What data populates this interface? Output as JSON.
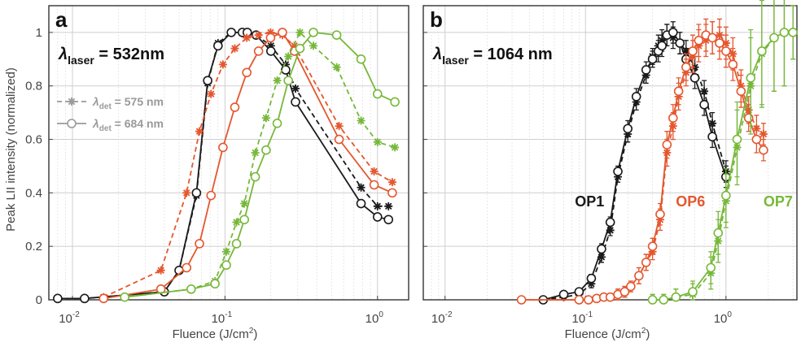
{
  "figure": {
    "ylabel": "Peak LII intensity (normalized)",
    "xlabel_prefix": "Fluence (J/cm",
    "xlabel_sup": "2",
    "xlabel_suffix": ")"
  },
  "colors": {
    "OP1": "#1a1a1a",
    "OP6": "#e4572e",
    "OP7": "#77b83a",
    "legend_gray": "#9a9a9a"
  },
  "chart_data": [
    {
      "type": "line",
      "panel_letter": "a",
      "lambda_symbol": "λ",
      "lambda_sub": "laser",
      "lambda_value": "= 532nm",
      "x_scale": "log",
      "xlim": [
        0.007,
        1.6
      ],
      "ylim": [
        0,
        1.1
      ],
      "yticks": [
        "0",
        "0.2",
        "0.4",
        "0.6",
        "0.8",
        "1"
      ],
      "xticks": [
        {
          "base": "10",
          "exp": "-2",
          "value": 0.01
        },
        {
          "base": "10",
          "exp": "-1",
          "value": 0.1
        },
        {
          "base": "10",
          "exp": "0",
          "value": 1
        }
      ],
      "grid": true,
      "legend_position": "middle-left",
      "legend": [
        {
          "symbol": "λ",
          "sub": "det",
          "value": "= 575 nm",
          "line": "dashed",
          "marker": "asterisk"
        },
        {
          "symbol": "λ",
          "sub": "det",
          "value": "= 684 nm",
          "line": "solid",
          "marker": "circle"
        }
      ],
      "series": [
        {
          "sample": "OP1",
          "detection": "575 nm",
          "line": "dashed",
          "marker": "asterisk",
          "x": [
            0.008,
            0.012,
            0.04,
            0.05,
            0.065,
            0.077,
            0.09,
            0.11,
            0.13,
            0.14,
            0.16,
            0.2,
            0.25,
            0.29,
            0.78,
            1.0,
            1.18
          ],
          "y": [
            0.005,
            0.005,
            0.03,
            0.11,
            0.39,
            0.81,
            0.96,
            1.0,
            1.0,
            1.0,
            0.99,
            0.95,
            0.88,
            0.79,
            0.42,
            0.35,
            0.35
          ]
        },
        {
          "sample": "OP1",
          "detection": "684 nm",
          "line": "solid",
          "marker": "circle",
          "x": [
            0.008,
            0.012,
            0.04,
            0.05,
            0.065,
            0.077,
            0.09,
            0.11,
            0.13,
            0.14,
            0.16,
            0.2,
            0.25,
            0.29,
            0.78,
            1.0,
            1.18
          ],
          "y": [
            0.005,
            0.005,
            0.03,
            0.11,
            0.4,
            0.82,
            0.95,
            1.0,
            1.0,
            1.0,
            0.99,
            0.93,
            0.86,
            0.74,
            0.36,
            0.31,
            0.3
          ]
        },
        {
          "sample": "OP6",
          "detection": "575 nm",
          "line": "dashed",
          "marker": "asterisk",
          "x": [
            0.016,
            0.038,
            0.056,
            0.068,
            0.081,
            0.097,
            0.116,
            0.139,
            0.166,
            0.199,
            0.238,
            0.285,
            0.56,
            0.95,
            1.25
          ],
          "y": [
            0.01,
            0.11,
            0.4,
            0.63,
            0.77,
            0.88,
            0.94,
            0.98,
            0.99,
            1.0,
            0.99,
            0.95,
            0.65,
            0.48,
            0.44
          ]
        },
        {
          "sample": "OP6",
          "detection": "684 nm",
          "line": "solid",
          "marker": "circle",
          "x": [
            0.016,
            0.038,
            0.056,
            0.068,
            0.081,
            0.097,
            0.116,
            0.139,
            0.166,
            0.199,
            0.238,
            0.285,
            0.56,
            0.95,
            1.25
          ],
          "y": [
            0.005,
            0.04,
            0.12,
            0.21,
            0.39,
            0.57,
            0.72,
            0.85,
            0.93,
            0.98,
            1.0,
            0.93,
            0.6,
            0.43,
            0.4
          ]
        },
        {
          "sample": "OP7",
          "detection": "575 nm",
          "line": "dashed",
          "marker": "asterisk",
          "x": [
            0.022,
            0.06,
            0.086,
            0.102,
            0.119,
            0.134,
            0.158,
            0.186,
            0.22,
            0.26,
            0.31,
            0.38,
            0.54,
            0.78,
            1.0,
            1.3
          ],
          "y": [
            0.01,
            0.04,
            0.07,
            0.18,
            0.29,
            0.36,
            0.55,
            0.68,
            0.82,
            0.91,
            1.0,
            0.95,
            0.87,
            0.67,
            0.59,
            0.57
          ]
        },
        {
          "sample": "OP7",
          "detection": "684 nm",
          "line": "solid",
          "marker": "circle",
          "x": [
            0.022,
            0.06,
            0.086,
            0.102,
            0.119,
            0.134,
            0.158,
            0.186,
            0.22,
            0.26,
            0.31,
            0.38,
            0.54,
            0.78,
            1.0,
            1.3
          ],
          "y": [
            0.01,
            0.04,
            0.06,
            0.13,
            0.21,
            0.3,
            0.46,
            0.56,
            0.66,
            0.82,
            0.94,
            1.0,
            0.99,
            0.9,
            0.77,
            0.74
          ]
        }
      ]
    },
    {
      "type": "line",
      "panel_letter": "b",
      "lambda_symbol": "λ",
      "lambda_sub": "laser",
      "lambda_value": "= 1064 nm",
      "x_scale": "log",
      "xlim": [
        0.007,
        3.2
      ],
      "ylim": [
        0,
        1.1
      ],
      "yticks": [
        "0",
        "0.2",
        "0.4",
        "0.6",
        "0.8",
        "1"
      ],
      "xticks": [
        {
          "base": "10",
          "exp": "-2",
          "value": 0.01
        },
        {
          "base": "10",
          "exp": "-1",
          "value": 0.1
        },
        {
          "base": "10",
          "exp": "0",
          "value": 1
        }
      ],
      "grid": true,
      "series_labels": [
        {
          "text": "OP1",
          "sample": "OP1",
          "x": 0.084,
          "y": 0.35
        },
        {
          "text": "OP6",
          "sample": "OP6",
          "x": 0.44,
          "y": 0.35
        },
        {
          "text": "OP7",
          "sample": "OP7",
          "x": 1.85,
          "y": 0.35
        }
      ],
      "series": [
        {
          "sample": "OP1",
          "detection": "575 nm",
          "line": "dashed",
          "marker": "asterisk",
          "x": [
            0.05,
            0.07,
            0.09,
            0.11,
            0.13,
            0.15,
            0.17,
            0.2,
            0.23,
            0.27,
            0.3,
            0.33,
            0.35,
            0.38,
            0.42,
            0.47,
            0.52,
            0.6,
            0.7,
            0.8,
            1.0
          ],
          "y": [
            0.0,
            0.01,
            0.02,
            0.06,
            0.16,
            0.26,
            0.46,
            0.62,
            0.74,
            0.84,
            0.91,
            0.95,
            0.97,
            0.99,
            0.98,
            0.96,
            0.93,
            0.87,
            0.78,
            0.66,
            0.48
          ],
          "err": [
            0.005,
            0.01,
            0.01,
            0.015,
            0.02,
            0.02,
            0.02,
            0.03,
            0.03,
            0.03,
            0.03,
            0.04,
            0.04,
            0.04,
            0.04,
            0.04,
            0.04,
            0.04,
            0.04,
            0.04,
            0.04
          ]
        },
        {
          "sample": "OP1",
          "detection": "684 nm",
          "line": "solid",
          "marker": "circle",
          "x": [
            0.05,
            0.07,
            0.09,
            0.11,
            0.13,
            0.15,
            0.17,
            0.2,
            0.23,
            0.27,
            0.3,
            0.33,
            0.35,
            0.38,
            0.42,
            0.47,
            0.52,
            0.6,
            0.7,
            0.8,
            1.0
          ],
          "y": [
            0.0,
            0.02,
            0.03,
            0.08,
            0.19,
            0.29,
            0.48,
            0.64,
            0.76,
            0.86,
            0.9,
            0.93,
            0.95,
            0.99,
            1.0,
            0.96,
            0.9,
            0.83,
            0.73,
            0.61,
            0.46
          ],
          "err": [
            0.005,
            0.01,
            0.01,
            0.015,
            0.02,
            0.02,
            0.02,
            0.03,
            0.03,
            0.03,
            0.03,
            0.04,
            0.04,
            0.04,
            0.04,
            0.04,
            0.04,
            0.04,
            0.04,
            0.04,
            0.04
          ]
        },
        {
          "sample": "OP6",
          "detection": "575 nm",
          "line": "dashed",
          "marker": "asterisk",
          "x": [
            0.035,
            0.09,
            0.105,
            0.12,
            0.135,
            0.15,
            0.17,
            0.19,
            0.21,
            0.24,
            0.27,
            0.3,
            0.34,
            0.38,
            0.42,
            0.46,
            0.52,
            0.58,
            0.64,
            0.72,
            0.8,
            0.9,
            1.0,
            1.12,
            1.28,
            1.45,
            1.65,
            1.85
          ],
          "y": [
            0.0,
            0.0,
            0.0,
            0.005,
            0.01,
            0.01,
            0.02,
            0.03,
            0.05,
            0.09,
            0.14,
            0.18,
            0.3,
            0.55,
            0.65,
            0.76,
            0.85,
            0.91,
            0.95,
            0.97,
            0.98,
            0.99,
            0.96,
            0.92,
            0.8,
            0.71,
            0.64,
            0.62
          ],
          "err": [
            0.005,
            0.005,
            0.005,
            0.01,
            0.01,
            0.01,
            0.02,
            0.02,
            0.02,
            0.03,
            0.03,
            0.03,
            0.04,
            0.05,
            0.05,
            0.05,
            0.05,
            0.06,
            0.06,
            0.06,
            0.06,
            0.06,
            0.06,
            0.06,
            0.06,
            0.05,
            0.05,
            0.04
          ]
        },
        {
          "sample": "OP6",
          "detection": "684 nm",
          "line": "solid",
          "marker": "circle",
          "x": [
            0.035,
            0.09,
            0.105,
            0.12,
            0.135,
            0.15,
            0.17,
            0.19,
            0.21,
            0.24,
            0.27,
            0.3,
            0.34,
            0.38,
            0.42,
            0.46,
            0.52,
            0.58,
            0.64,
            0.72,
            0.8,
            0.9,
            1.0,
            1.12,
            1.28,
            1.45,
            1.65,
            1.85
          ],
          "y": [
            0.0,
            0.0,
            0.0,
            0.005,
            0.01,
            0.01,
            0.02,
            0.03,
            0.05,
            0.09,
            0.14,
            0.2,
            0.32,
            0.58,
            0.68,
            0.78,
            0.87,
            0.93,
            0.97,
            0.99,
            0.98,
            0.96,
            0.93,
            0.88,
            0.78,
            0.68,
            0.6,
            0.56
          ],
          "err": [
            0.005,
            0.005,
            0.005,
            0.01,
            0.01,
            0.01,
            0.02,
            0.02,
            0.02,
            0.03,
            0.03,
            0.03,
            0.04,
            0.05,
            0.05,
            0.05,
            0.05,
            0.06,
            0.06,
            0.06,
            0.06,
            0.06,
            0.06,
            0.06,
            0.06,
            0.05,
            0.05,
            0.04
          ]
        },
        {
          "sample": "OP7",
          "detection": "575 nm",
          "line": "dashed",
          "marker": "asterisk",
          "x": [
            0.3,
            0.36,
            0.44,
            0.58,
            0.78,
            0.88,
            1.0,
            1.2,
            1.5,
            1.8,
            2.2,
            2.6,
            3.0
          ],
          "y": [
            0.0,
            0.0,
            0.01,
            0.02,
            0.1,
            0.22,
            0.37,
            0.57,
            0.8,
            0.92,
            0.98,
            1.0,
            1.0
          ],
          "err": [
            0.02,
            0.02,
            0.03,
            0.04,
            0.06,
            0.08,
            0.1,
            0.14,
            0.18,
            0.2,
            0.2,
            0.2,
            0.1
          ]
        },
        {
          "sample": "OP7",
          "detection": "684 nm",
          "line": "solid",
          "marker": "circle",
          "x": [
            0.3,
            0.36,
            0.44,
            0.58,
            0.78,
            0.88,
            1.0,
            1.2,
            1.5,
            1.8,
            2.2,
            2.6,
            3.0
          ],
          "y": [
            0.0,
            0.0,
            0.01,
            0.03,
            0.12,
            0.25,
            0.39,
            0.6,
            0.83,
            0.93,
            0.98,
            1.0,
            1.0
          ],
          "err": [
            0.02,
            0.02,
            0.03,
            0.04,
            0.06,
            0.08,
            0.1,
            0.14,
            0.18,
            0.2,
            0.2,
            0.2,
            0.1
          ]
        }
      ]
    }
  ]
}
